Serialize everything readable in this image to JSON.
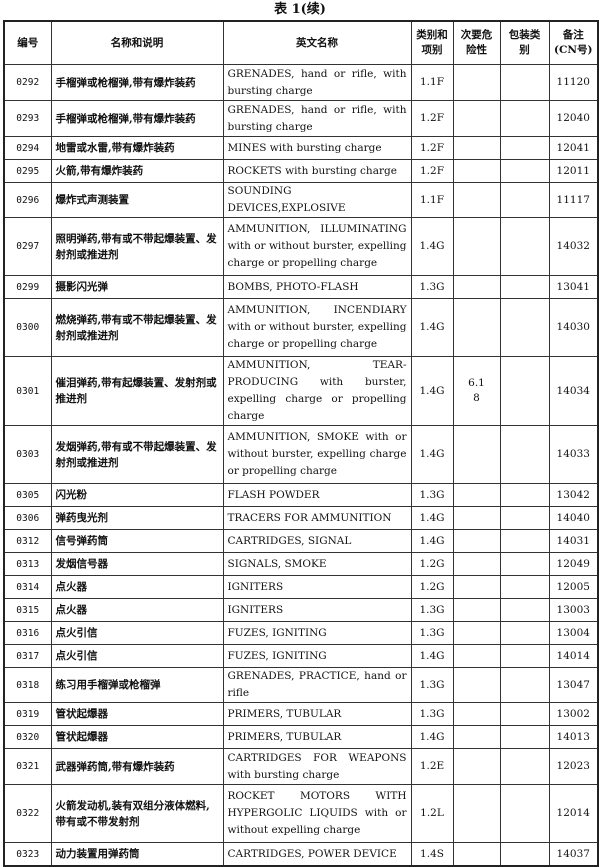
{
  "title": "表 1(续)",
  "headers": [
    "编号",
    "名称和说明",
    "英文名称",
    "类别和项别",
    "次要危险性",
    "包装类别",
    "备注(CN号)"
  ],
  "rows": [
    {
      "no": "0292",
      "cn": "手榴弹或枪榴弹,带有爆炸装药",
      "en": "GRENADES, hand or rifle, with bursting charge",
      "cls": "1.1F",
      "sub": "",
      "pkg": "",
      "note": "11120",
      "h": "d"
    },
    {
      "no": "0293",
      "cn": "手榴弹或枪榴弹,带有爆炸装药",
      "en": "GRENADES, hand or rifle, with bursting charge",
      "cls": "1.2F",
      "sub": "",
      "pkg": "",
      "note": "12040",
      "h": "d"
    },
    {
      "no": "0294",
      "cn": "地雷或水雷,带有爆炸装药",
      "en": "MINES with bursting charge",
      "cls": "1.2F",
      "sub": "",
      "pkg": "",
      "note": "12041",
      "h": "s"
    },
    {
      "no": "0295",
      "cn": "火箭,带有爆炸装药",
      "en": "ROCKETS with bursting charge",
      "cls": "1.2F",
      "sub": "",
      "pkg": "",
      "note": "12011",
      "h": "s"
    },
    {
      "no": "0296",
      "cn": "爆炸式声测装置",
      "en": "SOUNDING DEVICES,EXPLOSIVE",
      "cls": "1.1F",
      "sub": "",
      "pkg": "",
      "note": "11117",
      "h": "s"
    },
    {
      "no": "0297",
      "cn": "照明弹药,带有或不带起爆装置、发射剂或推进剂",
      "en": "AMMUNITION, ILLUMINATING with or without burster, expelling charge or propelling charge",
      "cls": "1.4G",
      "sub": "",
      "pkg": "",
      "note": "14032",
      "h": "t"
    },
    {
      "no": "0299",
      "cn": "摄影闪光弹",
      "en": "BOMBS, PHOTO-FLASH",
      "cls": "1.3G",
      "sub": "",
      "pkg": "",
      "note": "13041",
      "h": "s"
    },
    {
      "no": "0300",
      "cn": "燃烧弹药,带有或不带起爆装置、发射剂或推进剂",
      "en": "AMMUNITION, INCENDIARY with or without burster, expelling charge or propelling charge",
      "cls": "1.4G",
      "sub": "",
      "pkg": "",
      "note": "14030",
      "h": "t"
    },
    {
      "no": "0301",
      "cn": "催泪弹药,带有起爆装置、发射剂或推进剂",
      "en": "AMMUNITION, TEAR-PRODUCING with burster, expelling charge or propelling charge",
      "cls": "1.4G",
      "sub": "6.1\n8",
      "pkg": "",
      "note": "14034",
      "h": "t"
    },
    {
      "no": "0303",
      "cn": "发烟弹药,带有或不带起爆装置、发射剂或推进剂",
      "en": "AMMUNITION, SMOKE with or without burster, expelling charge or propelling charge",
      "cls": "1.4G",
      "sub": "",
      "pkg": "",
      "note": "14033",
      "h": "t"
    },
    {
      "no": "0305",
      "cn": "闪光粉",
      "en": "FLASH POWDER",
      "cls": "1.3G",
      "sub": "",
      "pkg": "",
      "note": "13042",
      "h": "s"
    },
    {
      "no": "0306",
      "cn": "弹药曳光剂",
      "en": "TRACERS FOR AMMUNITION",
      "cls": "1.4G",
      "sub": "",
      "pkg": "",
      "note": "14040",
      "h": "s"
    },
    {
      "no": "0312",
      "cn": "信号弹药筒",
      "en": "CARTRIDGES, SIGNAL",
      "cls": "1.4G",
      "sub": "",
      "pkg": "",
      "note": "14031",
      "h": "s"
    },
    {
      "no": "0313",
      "cn": "发烟信号器",
      "en": "SIGNALS, SMOKE",
      "cls": "1.2G",
      "sub": "",
      "pkg": "",
      "note": "12049",
      "h": "s"
    },
    {
      "no": "0314",
      "cn": "点火器",
      "en": "IGNITERS",
      "cls": "1.2G",
      "sub": "",
      "pkg": "",
      "note": "12005",
      "h": "s"
    },
    {
      "no": "0315",
      "cn": "点火器",
      "en": "IGNITERS",
      "cls": "1.3G",
      "sub": "",
      "pkg": "",
      "note": "13003",
      "h": "s"
    },
    {
      "no": "0316",
      "cn": "点火引信",
      "en": "FUZES, IGNITING",
      "cls": "1.3G",
      "sub": "",
      "pkg": "",
      "note": "13004",
      "h": "s"
    },
    {
      "no": "0317",
      "cn": "点火引信",
      "en": "FUZES, IGNITING",
      "cls": "1.4G",
      "sub": "",
      "pkg": "",
      "note": "14014",
      "h": "s"
    },
    {
      "no": "0318",
      "cn": "练习用手榴弹或枪榴弹",
      "en": "GRENADES, PRACTICE, hand or rifle",
      "cls": "1.3G",
      "sub": "",
      "pkg": "",
      "note": "13047",
      "h": "s"
    },
    {
      "no": "0319",
      "cn": "管状起爆器",
      "en": "PRIMERS, TUBULAR",
      "cls": "1.3G",
      "sub": "",
      "pkg": "",
      "note": "13002",
      "h": "s"
    },
    {
      "no": "0320",
      "cn": "管状起爆器",
      "en": "PRIMERS, TUBULAR",
      "cls": "1.4G",
      "sub": "",
      "pkg": "",
      "note": "14013",
      "h": "s"
    },
    {
      "no": "0321",
      "cn": "武器弹药筒,带有爆炸装药",
      "en": "CARTRIDGES FOR WEAPONS with bursting charge",
      "cls": "1.2E",
      "sub": "",
      "pkg": "",
      "note": "12023",
      "h": "d"
    },
    {
      "no": "0322",
      "cn": "火箭发动机,装有双组分液体燃料,带有或不带发射剂",
      "en": "ROCKET MOTORS WITH HYPERGOLIC LIQUIDS with or without expelling charge",
      "cls": "1.2L",
      "sub": "",
      "pkg": "",
      "note": "12014",
      "h": "t"
    },
    {
      "no": "0323",
      "cn": "动力装置用弹药筒",
      "en": "CARTRIDGES, POWER DEVICE",
      "cls": "1.4S",
      "sub": "",
      "pkg": "",
      "note": "14037",
      "h": "s"
    }
  ]
}
